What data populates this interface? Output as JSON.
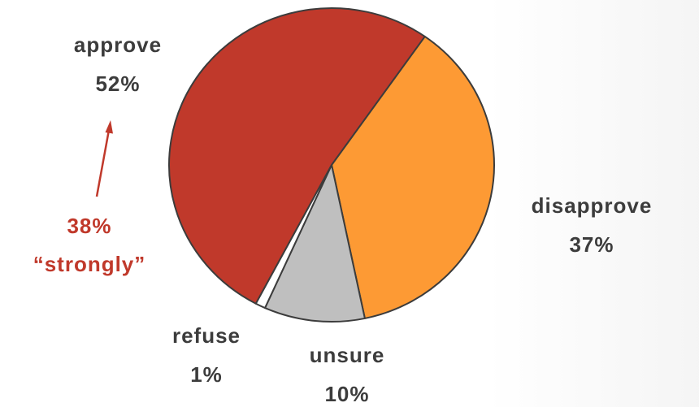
{
  "chart_data": {
    "type": "pie",
    "slices": [
      {
        "label": "approve",
        "value": 52,
        "value_label": "52%",
        "color": "#c0392b"
      },
      {
        "label": "disapprove",
        "value": 37,
        "value_label": "37%",
        "color": "#fd9a34"
      },
      {
        "label": "unsure",
        "value": 10,
        "value_label": "10%",
        "color": "#bfbfbf"
      },
      {
        "label": "refuse",
        "value": 1,
        "value_label": "1%",
        "color": "#ffffff"
      }
    ],
    "annotation": {
      "value": "38%",
      "text": "“strongly”",
      "color": "#c0392b",
      "refers_to": "approve"
    },
    "slice_outline_color": "#3c3c3c"
  }
}
